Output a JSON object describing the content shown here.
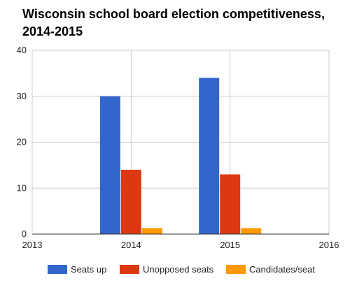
{
  "chart_data": {
    "type": "bar",
    "title": "Wisconsin school board election competitiveness,\n2014-2015",
    "categories": [
      "2014",
      "2015"
    ],
    "series": [
      {
        "name": "Seats up",
        "values": [
          30,
          34
        ],
        "color": "#3366cc"
      },
      {
        "name": "Unopposed seats",
        "values": [
          14,
          13
        ],
        "color": "#dc3912"
      },
      {
        "name": "Candidates/seat",
        "values": [
          1.3,
          1.3
        ],
        "color": "#ff9900"
      }
    ],
    "x_ticks": [
      "2013",
      "2014",
      "2015",
      "2016"
    ],
    "xlim": [
      2013,
      2016
    ],
    "ylim": [
      0,
      40
    ],
    "y_ticks": [
      0,
      10,
      20,
      30,
      40
    ],
    "grid": true,
    "legend_position": "bottom"
  }
}
